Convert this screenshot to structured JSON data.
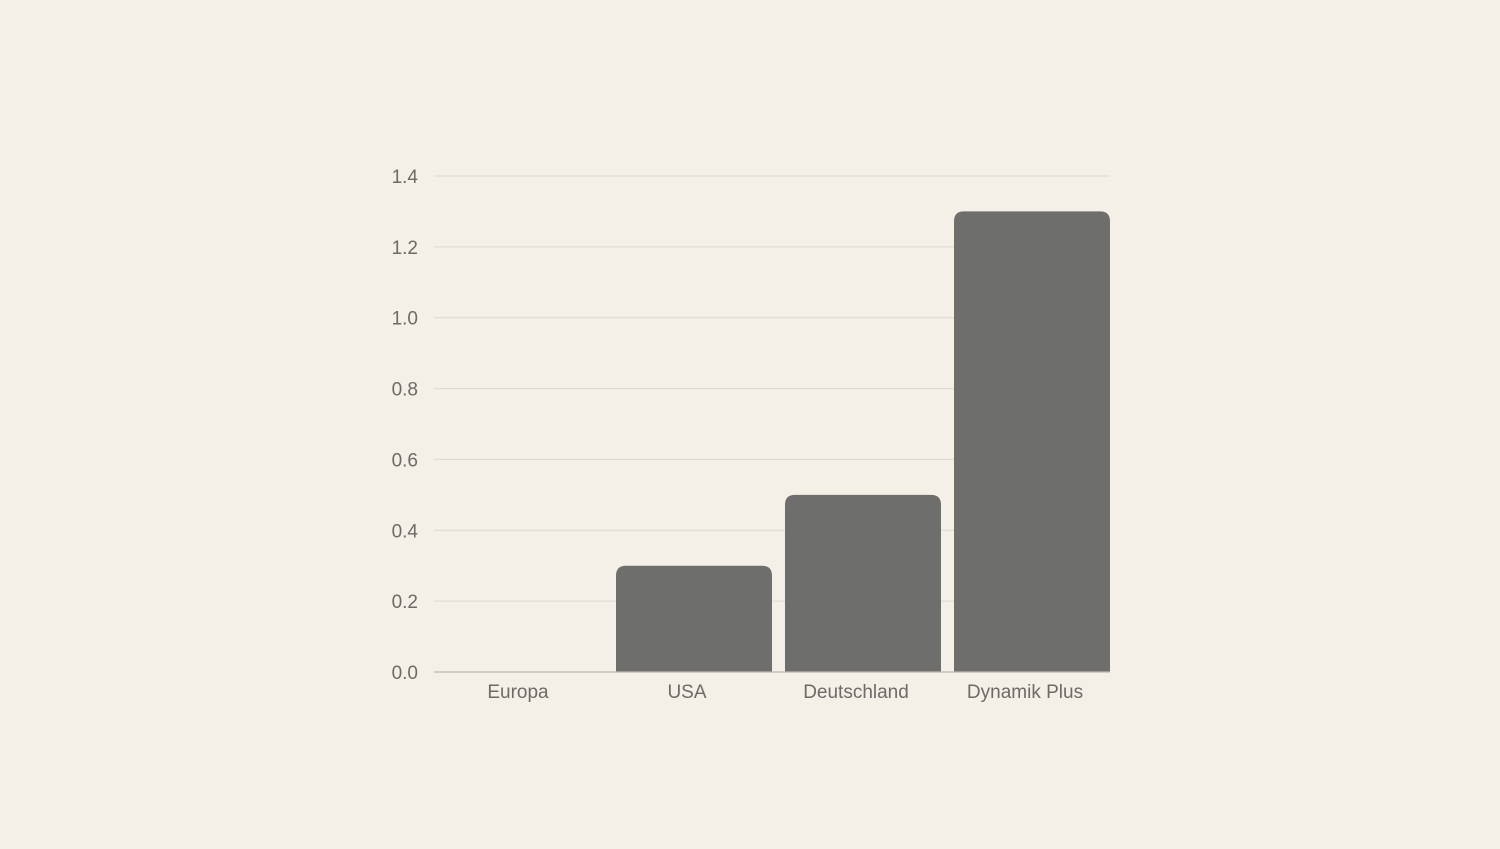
{
  "chart_data": {
    "type": "bar",
    "categories": [
      "Europa",
      "USA",
      "Deutschland",
      "Dynamik Plus"
    ],
    "values": [
      0.0,
      0.3,
      0.5,
      1.3
    ],
    "ylim": [
      0,
      1.4
    ],
    "yticks": [
      "0.0",
      "0.2",
      "0.4",
      "0.6",
      "0.8",
      "1.0",
      "1.2",
      "1.4"
    ],
    "title": "",
    "xlabel": "",
    "ylabel": "",
    "grid": true,
    "legend": "none",
    "colors": {
      "background": "#f4efe7",
      "bar": "#6e6e6c",
      "grid": "#dcd8d0",
      "axis": "#bdb8b0",
      "text": "#6e6a66"
    }
  }
}
